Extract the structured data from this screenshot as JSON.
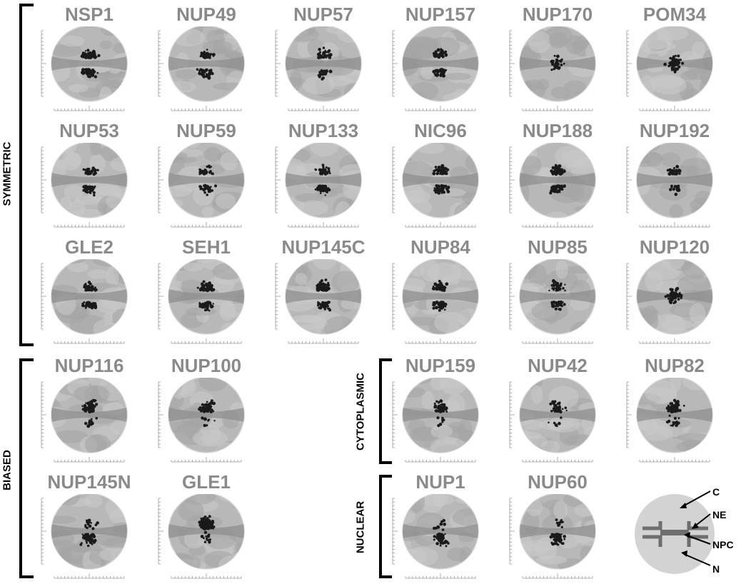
{
  "groups": {
    "symmetric": "SYMMETRIC",
    "biased": "BIASED",
    "cytoplasmic": "CYTOPLASMIC",
    "nuclear": "NUCLEAR"
  },
  "panels": [
    {
      "label": "NSP1",
      "dist": "sym",
      "seed": 11,
      "n": 120
    },
    {
      "label": "NUP49",
      "dist": "sym",
      "seed": 12,
      "n": 70
    },
    {
      "label": "NUP57",
      "dist": "sym",
      "seed": 13,
      "n": 55
    },
    {
      "label": "NUP157",
      "dist": "sym",
      "seed": 14,
      "n": 70
    },
    {
      "label": "NUP170",
      "dist": "center",
      "seed": 15,
      "n": 35
    },
    {
      "label": "POM34",
      "dist": "center",
      "seed": 16,
      "n": 70
    },
    {
      "label": "NUP53",
      "dist": "sym",
      "seed": 21,
      "n": 70
    },
    {
      "label": "NUP59",
      "dist": "sym",
      "seed": 22,
      "n": 60
    },
    {
      "label": "NUP133",
      "dist": "sym",
      "seed": 23,
      "n": 75
    },
    {
      "label": "NIC96",
      "dist": "sym",
      "seed": 24,
      "n": 95
    },
    {
      "label": "NUP188",
      "dist": "sym",
      "seed": 25,
      "n": 100
    },
    {
      "label": "NUP192",
      "dist": "sym",
      "seed": 26,
      "n": 40
    },
    {
      "label": "GLE2",
      "dist": "sym",
      "seed": 31,
      "n": 75
    },
    {
      "label": "SEH1",
      "dist": "sym",
      "seed": 32,
      "n": 85
    },
    {
      "label": "NUP145C",
      "dist": "sym",
      "seed": 33,
      "n": 90
    },
    {
      "label": "NUP84",
      "dist": "sym",
      "seed": 34,
      "n": 95
    },
    {
      "label": "NUP85",
      "dist": "sym",
      "seed": 35,
      "n": 70
    },
    {
      "label": "NUP120",
      "dist": "center",
      "seed": 36,
      "n": 70
    },
    {
      "label": "NUP116",
      "dist": "top",
      "seed": 41,
      "n": 80
    },
    {
      "label": "NUP100",
      "dist": "top",
      "seed": 42,
      "n": 70
    },
    {
      "label": "NUP159",
      "dist": "top",
      "seed": 43,
      "n": 60
    },
    {
      "label": "NUP42",
      "dist": "top",
      "seed": 44,
      "n": 50
    },
    {
      "label": "NUP82",
      "dist": "top",
      "seed": 45,
      "n": 70
    },
    {
      "label": "NUP145N",
      "dist": "bottom",
      "seed": 51,
      "n": 65
    },
    {
      "label": "GLE1",
      "dist": "top",
      "seed": 52,
      "n": 110
    },
    {
      "label": "NUP1",
      "dist": "bottom",
      "seed": 53,
      "n": 55
    },
    {
      "label": "NUP60",
      "dist": "bottom",
      "seed": 54,
      "n": 80
    }
  ],
  "schematic": {
    "labels": {
      "c": "C",
      "ne": "NE",
      "npc": "NPC",
      "n": "N"
    },
    "colors": {
      "disc": "#d3d3d3",
      "envelope": "#6e6e6e"
    }
  },
  "colors": {
    "title": "#8a8a8a",
    "dot": "#1a1a1a"
  }
}
